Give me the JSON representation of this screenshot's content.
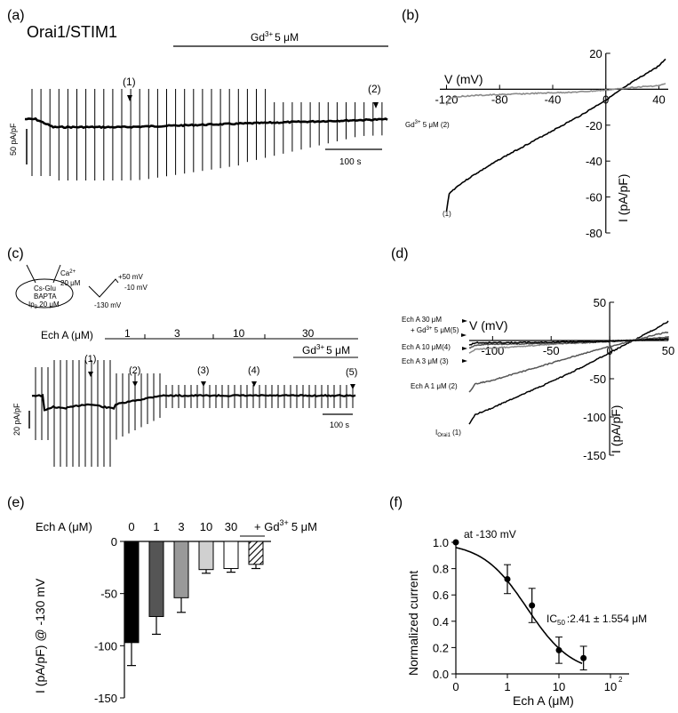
{
  "panel_labels": {
    "a": "(a)",
    "b": "(b)",
    "c": "(c)",
    "d": "(d)",
    "e": "(e)",
    "f": "(f)"
  },
  "panel_a": {
    "title": "Orai1/STIM1",
    "gd_label": "Gd",
    "gd_sup": "3+",
    "gd_conc": "5 μM",
    "marker1": "(1)",
    "marker2": "(2)",
    "yscale": "50 pA/pF",
    "tscale": "100 s"
  },
  "panel_c": {
    "pipette": {
      "ca": "Ca",
      "ca_sup": "2+",
      "ca_conc": "20 μM",
      "line1": "Cs-Glu",
      "line2": "BAPTA",
      "line3": "Ip",
      "line3_sub": "3",
      "line3_rest": " 20 μM"
    },
    "ramp": {
      "v1": "+50 mV",
      "v2": "-10 mV",
      "v3": "-130 mV"
    },
    "echa_label": "Ech A (μM)",
    "concs": [
      "1",
      "3",
      "10",
      "30"
    ],
    "gd_label": "Gd",
    "gd_sup": "3+",
    "gd_conc": "5 μM",
    "markers": [
      "(1)",
      "(2)",
      "(3)",
      "(4)",
      "(5)"
    ],
    "yscale": "20 pA/pF",
    "tscale": "100 s"
  },
  "colors": {
    "black": "#000000",
    "dark_gray": "#555555",
    "mid_gray": "#8a8a8a",
    "light_gray": "#c8c8c8"
  },
  "chart_data": [
    {
      "panel": "b",
      "type": "line",
      "xlabel": "V (mV)",
      "ylabel": "I (pA/pF)",
      "xlim": [
        -125,
        47
      ],
      "ylim": [
        -80,
        20
      ],
      "xticks": [
        -120,
        -80,
        -40,
        0,
        40
      ],
      "yticks": [
        20,
        0,
        -20,
        -40,
        -60,
        -80
      ],
      "series": [
        {
          "name": "(1)",
          "color": "#000000",
          "x": [
            -120,
            -118,
            -110,
            -100,
            -80,
            -60,
            -40,
            -20,
            0,
            20,
            30,
            40,
            45
          ],
          "y": [
            -68,
            -58,
            -53,
            -48,
            -39,
            -31,
            -23,
            -15,
            -6,
            4,
            8.5,
            13,
            17
          ]
        },
        {
          "name": "Gd³⁺ 5 μM (2)",
          "color": "#8a8a8a",
          "x": [
            -120,
            -118,
            -110,
            -100,
            -80,
            -60,
            -40,
            -20,
            0,
            20,
            40,
            45
          ],
          "y": [
            -9,
            -5,
            -4,
            -3.5,
            -3,
            -2.5,
            -2,
            -1.5,
            -0.5,
            1,
            2,
            3
          ]
        }
      ],
      "annotations": [
        "(1)",
        "Gd",
        "3+",
        " 5 μM (2)"
      ]
    },
    {
      "panel": "d",
      "type": "line",
      "xlabel": "V (mV)",
      "ylabel": "I (pA/pF)",
      "xlim": [
        -120,
        50
      ],
      "ylim": [
        -150,
        50
      ],
      "xticks": [
        -100,
        -50,
        0,
        50
      ],
      "xtick_labels": [
        "-100",
        "-50",
        "0",
        "50"
      ],
      "yticks": [
        50,
        0,
        -50,
        -100,
        -150
      ],
      "series": [
        {
          "name": "I Orai1 (1)",
          "color": "#000000",
          "x": [
            -120,
            -115,
            -100,
            -80,
            -60,
            -40,
            -20,
            0,
            20,
            40,
            50
          ],
          "y": [
            -110,
            -97,
            -88,
            -74,
            -61,
            -47,
            -32,
            -16,
            0,
            16,
            25
          ]
        },
        {
          "name": "Ech A 1 μM (2)",
          "color": "#555555",
          "x": [
            -120,
            -115,
            -100,
            -80,
            -60,
            -40,
            -20,
            0,
            20,
            40,
            50
          ],
          "y": [
            -68,
            -57,
            -52,
            -43,
            -34,
            -25,
            -16,
            -8,
            0,
            8,
            11
          ]
        },
        {
          "name": "Ech A 3 μM (3)",
          "color": "#8a8a8a",
          "x": [
            -120,
            -115,
            -100,
            -80,
            -60,
            -40,
            -20,
            0,
            20,
            40,
            50
          ],
          "y": [
            -16,
            -12,
            -10,
            -8,
            -6,
            -4,
            -3,
            -1,
            0.5,
            3,
            5
          ]
        },
        {
          "name": "Ech A 10 μM (4)",
          "color": "#555555",
          "x": [
            -120,
            -115,
            -100,
            -60,
            -20,
            0,
            20,
            40,
            50
          ],
          "y": [
            -10,
            -6,
            -5,
            -4,
            -2.5,
            -1.5,
            0.5,
            3,
            4
          ]
        },
        {
          "name": "Ech A 30 μM + Gd³⁺ 5 μM (5)",
          "color": "#000000",
          "x": [
            -120,
            -115,
            -100,
            -60,
            -20,
            0,
            20,
            40,
            50
          ],
          "y": [
            -6,
            -3,
            -3,
            -2.5,
            -1.5,
            -1,
            0,
            1.5,
            2
          ]
        }
      ],
      "annotations": [
        "Ech A 30 μM",
        "+ Gd",
        "3+",
        " 5 μM(5)",
        "Ech A 10 μM(4)",
        "Ech A 3 μM (3)",
        "Ech A 1 μM (2)",
        "I",
        "Orai1",
        " (1)"
      ]
    },
    {
      "panel": "e",
      "type": "bar",
      "title": "Ech A (μM)",
      "categories": [
        "0",
        "1",
        "3",
        "10",
        "30",
        "+ Gd³⁺ 5 μM"
      ],
      "category_labels": [
        "0",
        "1",
        "3",
        "10",
        "30",
        "+ Gd",
        "3+",
        "5 μM"
      ],
      "values": [
        -97,
        -72,
        -54,
        -27,
        -26,
        -22
      ],
      "errors": [
        22,
        17,
        14,
        3.5,
        3.5,
        4
      ],
      "colors": [
        "#000000",
        "#555555",
        "#999999",
        "#d0d0d0",
        "#ffffff",
        "hatched"
      ],
      "ylabel": "I  (pA/pF) @ -130 mV",
      "ylim": [
        -150,
        0
      ],
      "yticks": [
        0,
        -50,
        -100,
        -150
      ]
    },
    {
      "panel": "f",
      "type": "scatter",
      "xlabel": "Ech A (μM)",
      "ylabel": "Normalized current",
      "xlim": [
        0,
        100
      ],
      "ylim": [
        0,
        1.0
      ],
      "xticks": [
        "0",
        "1",
        "10",
        "10"
      ],
      "xtick_sup": "2",
      "yticks": [
        1.0,
        0.8,
        0.6,
        0.4,
        0.2,
        0.0
      ],
      "x": [
        0,
        1,
        3,
        10,
        30
      ],
      "y": [
        1.0,
        0.72,
        0.52,
        0.18,
        0.12
      ],
      "errors": [
        0,
        0.11,
        0.13,
        0.1,
        0.09
      ],
      "fit": {
        "ic50": 2.41,
        "hill": 1
      },
      "annotations": [
        "at -130 mV",
        "IC",
        "50",
        ":2.41 ± 1.554  μM"
      ]
    }
  ]
}
